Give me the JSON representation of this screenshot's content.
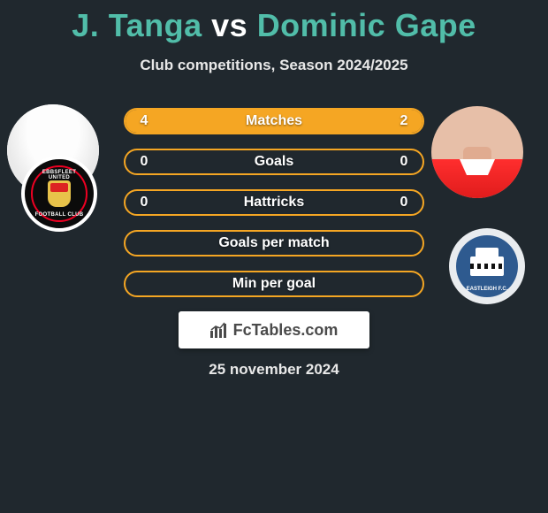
{
  "title": {
    "p1": "J. Tanga",
    "vs": "vs",
    "p2": "Dominic Gape"
  },
  "subtitle": "Club competitions, Season 2024/2025",
  "date": "25 november 2024",
  "brand": "FcTables.com",
  "club_left": {
    "top": "EBBSFLEET UNITED",
    "bottom": "FOOTBALL CLUB"
  },
  "club_right": {
    "label": "EASTLEIGH F.C."
  },
  "colors": {
    "bg": "#20282e",
    "accent": "#f5a623",
    "title": "#51bda9",
    "text": "#ffffff"
  },
  "stats": {
    "rows": [
      {
        "label": "Matches",
        "left": "4",
        "right": "2",
        "fill_left_pct": 66,
        "fill_right_pct": 34,
        "show_vals": true
      },
      {
        "label": "Goals",
        "left": "0",
        "right": "0",
        "fill_left_pct": 0,
        "fill_right_pct": 0,
        "show_vals": true
      },
      {
        "label": "Hattricks",
        "left": "0",
        "right": "0",
        "fill_left_pct": 0,
        "fill_right_pct": 0,
        "show_vals": true
      },
      {
        "label": "Goals per match",
        "left": "",
        "right": "",
        "fill_left_pct": 0,
        "fill_right_pct": 0,
        "show_vals": false
      },
      {
        "label": "Min per goal",
        "left": "",
        "right": "",
        "fill_left_pct": 0,
        "fill_right_pct": 0,
        "show_vals": false
      }
    ]
  }
}
